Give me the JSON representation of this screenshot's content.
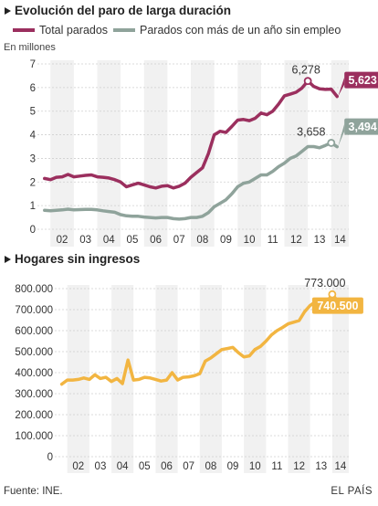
{
  "colors": {
    "total": "#9b2f5e",
    "long": "#8fa39b",
    "hogares": "#f2b541",
    "grid": "#cfcfcf",
    "band": "#f1f1f1"
  },
  "footer": {
    "source": "Fuente: INE.",
    "brand": "EL PAÍS"
  },
  "chart_data": [
    {
      "type": "line",
      "title": "Evolución del paro de larga duración",
      "unit_label": "En millones",
      "ylim": [
        0,
        7
      ],
      "y_ticks": [
        "0",
        "1",
        "2",
        "3",
        "4",
        "5",
        "6",
        "7"
      ],
      "x_ticks": [
        "02",
        "03",
        "04",
        "05",
        "06",
        "07",
        "08",
        "09",
        "10",
        "11",
        "12",
        "13",
        "14"
      ],
      "x_start": 2001.6,
      "x_end": 2014.75,
      "grid": true,
      "legend_position": "top",
      "series": [
        {
          "name": "Total parados",
          "color_key": "total",
          "points": [
            [
              2001.75,
              2.15
            ],
            [
              2002.0,
              2.1
            ],
            [
              2002.25,
              2.2
            ],
            [
              2002.5,
              2.22
            ],
            [
              2002.75,
              2.32
            ],
            [
              2003.0,
              2.22
            ],
            [
              2003.25,
              2.25
            ],
            [
              2003.5,
              2.28
            ],
            [
              2003.75,
              2.3
            ],
            [
              2004.0,
              2.22
            ],
            [
              2004.25,
              2.2
            ],
            [
              2004.5,
              2.17
            ],
            [
              2004.75,
              2.1
            ],
            [
              2005.0,
              2.0
            ],
            [
              2005.25,
              1.8
            ],
            [
              2005.5,
              1.88
            ],
            [
              2005.75,
              1.95
            ],
            [
              2006.0,
              1.88
            ],
            [
              2006.25,
              1.8
            ],
            [
              2006.5,
              1.75
            ],
            [
              2006.75,
              1.82
            ],
            [
              2007.0,
              1.85
            ],
            [
              2007.25,
              1.75
            ],
            [
              2007.5,
              1.82
            ],
            [
              2007.75,
              1.95
            ],
            [
              2008.0,
              2.2
            ],
            [
              2008.25,
              2.4
            ],
            [
              2008.5,
              2.6
            ],
            [
              2008.75,
              3.2
            ],
            [
              2009.0,
              4.0
            ],
            [
              2009.25,
              4.15
            ],
            [
              2009.5,
              4.1
            ],
            [
              2009.75,
              4.35
            ],
            [
              2010.0,
              4.62
            ],
            [
              2010.25,
              4.65
            ],
            [
              2010.5,
              4.6
            ],
            [
              2010.75,
              4.7
            ],
            [
              2011.0,
              4.92
            ],
            [
              2011.25,
              4.85
            ],
            [
              2011.5,
              5.0
            ],
            [
              2011.75,
              5.3
            ],
            [
              2012.0,
              5.65
            ],
            [
              2012.25,
              5.72
            ],
            [
              2012.5,
              5.8
            ],
            [
              2012.75,
              5.98
            ],
            [
              2013.0,
              6.278
            ],
            [
              2013.25,
              6.05
            ],
            [
              2013.5,
              5.95
            ],
            [
              2013.75,
              5.92
            ],
            [
              2014.0,
              5.933
            ],
            [
              2014.25,
              5.623
            ]
          ],
          "peak": {
            "x": 2013.0,
            "y": 6.278,
            "label": "6,278"
          },
          "last": {
            "x": 2014.25,
            "y": 5.623,
            "label": "5,623"
          }
        },
        {
          "name": "Parados con más de un año sin empleo",
          "color_key": "long",
          "points": [
            [
              2001.75,
              0.8
            ],
            [
              2002.0,
              0.78
            ],
            [
              2002.25,
              0.8
            ],
            [
              2002.5,
              0.82
            ],
            [
              2002.75,
              0.85
            ],
            [
              2003.0,
              0.82
            ],
            [
              2003.25,
              0.83
            ],
            [
              2003.5,
              0.84
            ],
            [
              2003.75,
              0.84
            ],
            [
              2004.0,
              0.82
            ],
            [
              2004.25,
              0.78
            ],
            [
              2004.5,
              0.75
            ],
            [
              2004.75,
              0.72
            ],
            [
              2005.0,
              0.62
            ],
            [
              2005.25,
              0.57
            ],
            [
              2005.5,
              0.55
            ],
            [
              2005.75,
              0.55
            ],
            [
              2006.0,
              0.52
            ],
            [
              2006.25,
              0.5
            ],
            [
              2006.5,
              0.48
            ],
            [
              2006.75,
              0.5
            ],
            [
              2007.0,
              0.5
            ],
            [
              2007.25,
              0.45
            ],
            [
              2007.5,
              0.43
            ],
            [
              2007.75,
              0.45
            ],
            [
              2008.0,
              0.5
            ],
            [
              2008.25,
              0.5
            ],
            [
              2008.5,
              0.55
            ],
            [
              2008.75,
              0.7
            ],
            [
              2009.0,
              0.95
            ],
            [
              2009.25,
              1.1
            ],
            [
              2009.5,
              1.25
            ],
            [
              2009.75,
              1.5
            ],
            [
              2010.0,
              1.8
            ],
            [
              2010.25,
              1.95
            ],
            [
              2010.5,
              2.0
            ],
            [
              2010.75,
              2.15
            ],
            [
              2011.0,
              2.3
            ],
            [
              2011.25,
              2.3
            ],
            [
              2011.5,
              2.45
            ],
            [
              2011.75,
              2.65
            ],
            [
              2012.0,
              2.8
            ],
            [
              2012.25,
              3.0
            ],
            [
              2012.5,
              3.1
            ],
            [
              2012.75,
              3.3
            ],
            [
              2013.0,
              3.5
            ],
            [
              2013.25,
              3.5
            ],
            [
              2013.5,
              3.45
            ],
            [
              2013.75,
              3.55
            ],
            [
              2014.0,
              3.658
            ],
            [
              2014.25,
              3.494
            ]
          ],
          "peak": {
            "x": 2014.0,
            "y": 3.658,
            "label": "3,658"
          },
          "last": {
            "x": 2014.25,
            "y": 3.494,
            "label": "3,494"
          }
        }
      ]
    },
    {
      "type": "line",
      "title": "Hogares sin ingresos",
      "ylim": [
        0,
        800000
      ],
      "y_ticks": [
        "0",
        "100.000",
        "200.000",
        "300.000",
        "400.000",
        "500.000",
        "600.000",
        "700.000",
        "800.000"
      ],
      "x_ticks": [
        "02",
        "03",
        "04",
        "05",
        "06",
        "07",
        "08",
        "09",
        "10",
        "11",
        "12",
        "13",
        "14"
      ],
      "x_start": 2001.6,
      "x_end": 2014.75,
      "grid": true,
      "series": [
        {
          "color_key": "hogares",
          "points": [
            [
              2001.75,
              345000
            ],
            [
              2002.0,
              365000
            ],
            [
              2002.25,
              365000
            ],
            [
              2002.5,
              368000
            ],
            [
              2002.75,
              375000
            ],
            [
              2003.0,
              368000
            ],
            [
              2003.25,
              390000
            ],
            [
              2003.5,
              372000
            ],
            [
              2003.75,
              378000
            ],
            [
              2004.0,
              358000
            ],
            [
              2004.25,
              372000
            ],
            [
              2004.5,
              348000
            ],
            [
              2004.75,
              460000
            ],
            [
              2005.0,
              365000
            ],
            [
              2005.25,
              368000
            ],
            [
              2005.5,
              378000
            ],
            [
              2005.75,
              375000
            ],
            [
              2006.0,
              368000
            ],
            [
              2006.25,
              360000
            ],
            [
              2006.5,
              365000
            ],
            [
              2006.75,
              400000
            ],
            [
              2007.0,
              365000
            ],
            [
              2007.25,
              378000
            ],
            [
              2007.5,
              380000
            ],
            [
              2007.75,
              385000
            ],
            [
              2008.0,
              395000
            ],
            [
              2008.25,
              455000
            ],
            [
              2008.5,
              470000
            ],
            [
              2008.75,
              490000
            ],
            [
              2009.0,
              510000
            ],
            [
              2009.25,
              515000
            ],
            [
              2009.5,
              520000
            ],
            [
              2009.75,
              495000
            ],
            [
              2010.0,
              475000
            ],
            [
              2010.25,
              480000
            ],
            [
              2010.5,
              510000
            ],
            [
              2010.75,
              525000
            ],
            [
              2011.0,
              550000
            ],
            [
              2011.25,
              580000
            ],
            [
              2011.5,
              600000
            ],
            [
              2011.75,
              615000
            ],
            [
              2012.0,
              632000
            ],
            [
              2012.25,
              640000
            ],
            [
              2012.5,
              648000
            ],
            [
              2012.75,
              690000
            ],
            [
              2013.0,
              720000
            ],
            [
              2013.25,
              738000
            ],
            [
              2013.5,
              720000
            ],
            [
              2013.75,
              735000
            ],
            [
              2014.0,
              773000
            ],
            [
              2014.25,
              740500
            ]
          ],
          "peak": {
            "x": 2014.0,
            "y": 773000,
            "label": "773.000"
          },
          "last": {
            "x": 2014.25,
            "y": 740500,
            "label": "740.500"
          }
        }
      ]
    }
  ]
}
